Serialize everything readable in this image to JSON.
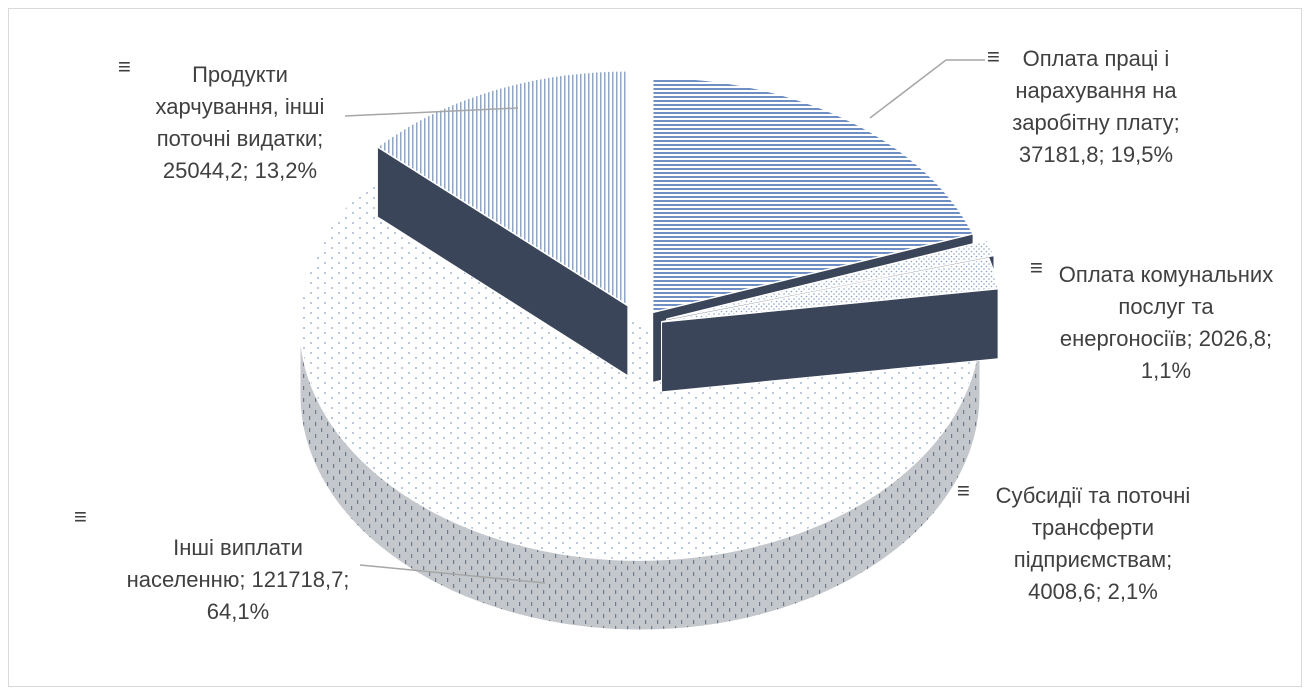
{
  "chart_data": {
    "type": "pie",
    "title": "",
    "series_unit": "",
    "slices": [
      {
        "label": "Оплата праці і нарахування на заробітну плату",
        "value": 37181.8,
        "percent": 19.5,
        "label_lines": [
          "Оплата праці і",
          "нарахування на",
          "заробітну плату;",
          "37181,8; 19,5%"
        ],
        "color": "#6f8fc4"
      },
      {
        "label": "Оплата комунальних послуг та енергоносіїв",
        "value": 2026.8,
        "percent": 1.1,
        "label_lines": [
          "Оплата комунальних",
          "послуг та",
          "енергоносіїв; 2026,8;",
          "1,1%"
        ],
        "color": "#5a6f96"
      },
      {
        "label": "Субсидії та поточні трансферти підприємствам",
        "value": 4008.6,
        "percent": 2.1,
        "label_lines": [
          "Субсидії та поточні",
          "трансферти",
          "підприємствам;",
          "4008,6; 2,1%"
        ],
        "color": "#b7c7dd"
      },
      {
        "label": "Інші виплати населенню",
        "value": 121718.7,
        "percent": 64.1,
        "label_lines": [
          "Інші виплати",
          "населенню; 121718,7;",
          "64,1%"
        ],
        "color": "#c6d1e0"
      },
      {
        "label": "Продукти харчування, інші поточні видатки",
        "value": 25044.2,
        "percent": 13.2,
        "label_lines": [
          "Продукти",
          "харчування, інші",
          "поточні видатки;",
          "25044,2; 13,2%"
        ],
        "color": "#8fa6c8"
      }
    ],
    "legend": "none",
    "style": "3d-exploded"
  }
}
